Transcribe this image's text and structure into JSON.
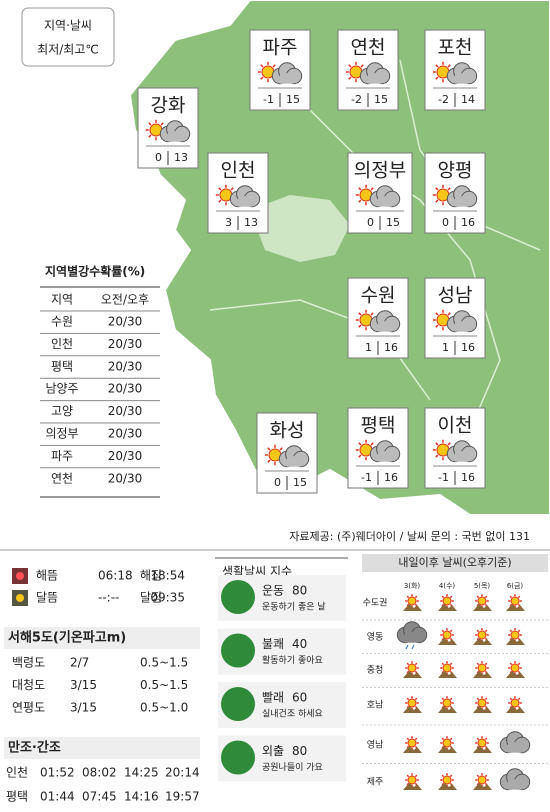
{
  "legend": {
    "line1": "지역·날씨",
    "line2": "최저/최고℃"
  },
  "cities": [
    {
      "name": "파주",
      "min": -1,
      "max": 15
    },
    {
      "name": "연천",
      "min": -2,
      "max": 15
    },
    {
      "name": "포천",
      "min": -2,
      "max": 14
    },
    {
      "name": "강화",
      "min": 0,
      "max": 13
    },
    {
      "name": "인천",
      "min": 3,
      "max": 13
    },
    {
      "name": "의정부",
      "min": 0,
      "max": 15
    },
    {
      "name": "양평",
      "min": 0,
      "max": 16
    },
    {
      "name": "수원",
      "min": 1,
      "max": 16
    },
    {
      "name": "성남",
      "min": 1,
      "max": 16
    },
    {
      "name": "화성",
      "min": 0,
      "max": 15
    },
    {
      "name": "평택",
      "min": -1,
      "max": 16
    },
    {
      "name": "이천",
      "min": -1,
      "max": 16
    }
  ],
  "rain_probability": {
    "title": "지역별강수확률(%)",
    "header": [
      "지역",
      "오전/오후"
    ],
    "rows": [
      [
        "수원",
        "20/30"
      ],
      [
        "인천",
        "20/30"
      ],
      [
        "평택",
        "20/30"
      ],
      [
        "남양주",
        "20/30"
      ],
      [
        "고양",
        "20/30"
      ],
      [
        "의정부",
        "20/30"
      ],
      [
        "파주",
        "20/30"
      ],
      [
        "연천",
        "20/30"
      ]
    ]
  },
  "source": "자료제공: (주)웨더아이 / 날씨 문의 : 국번 없이 131",
  "sun_moon": [
    [
      "해뜸",
      "06:18",
      "해짐",
      "18:54"
    ],
    [
      "달뜸",
      "--:--",
      "달짐",
      "09:35"
    ]
  ],
  "west_islands": {
    "title": "서해5도(기온파고m)",
    "rows": [
      [
        "백령도",
        "2/7",
        "0.5~1.5"
      ],
      [
        "대청도",
        "3/15",
        "0.5~1.5"
      ],
      [
        "연평도",
        "3/15",
        "0.5~1.0"
      ]
    ]
  },
  "tides": {
    "title": "만조·간조",
    "rows": [
      [
        "인천",
        "01:52",
        "08:02",
        "14:25",
        "20:14"
      ],
      [
        "평택",
        "01:44",
        "07:45",
        "14:16",
        "19:57"
      ]
    ]
  },
  "life_index": {
    "title": "생활날씨 지수",
    "items": [
      {
        "name": "운동",
        "value": 80,
        "desc": "운동하기 좋은 날"
      },
      {
        "name": "불쾌",
        "value": 40,
        "desc": "활동하기 좋아요"
      },
      {
        "name": "빨래",
        "value": 60,
        "desc": "실내건조 하세요"
      },
      {
        "name": "외출",
        "value": 80,
        "desc": "공원나들이 가요"
      }
    ]
  },
  "forecast": {
    "title": "내일이후 날씨(오후기준)",
    "days": [
      "3(화)",
      "4(수)",
      "5(목)",
      "6(금)"
    ],
    "regions": [
      "수도권",
      "영동",
      "충청",
      "호남",
      "영남",
      "제주"
    ]
  }
}
